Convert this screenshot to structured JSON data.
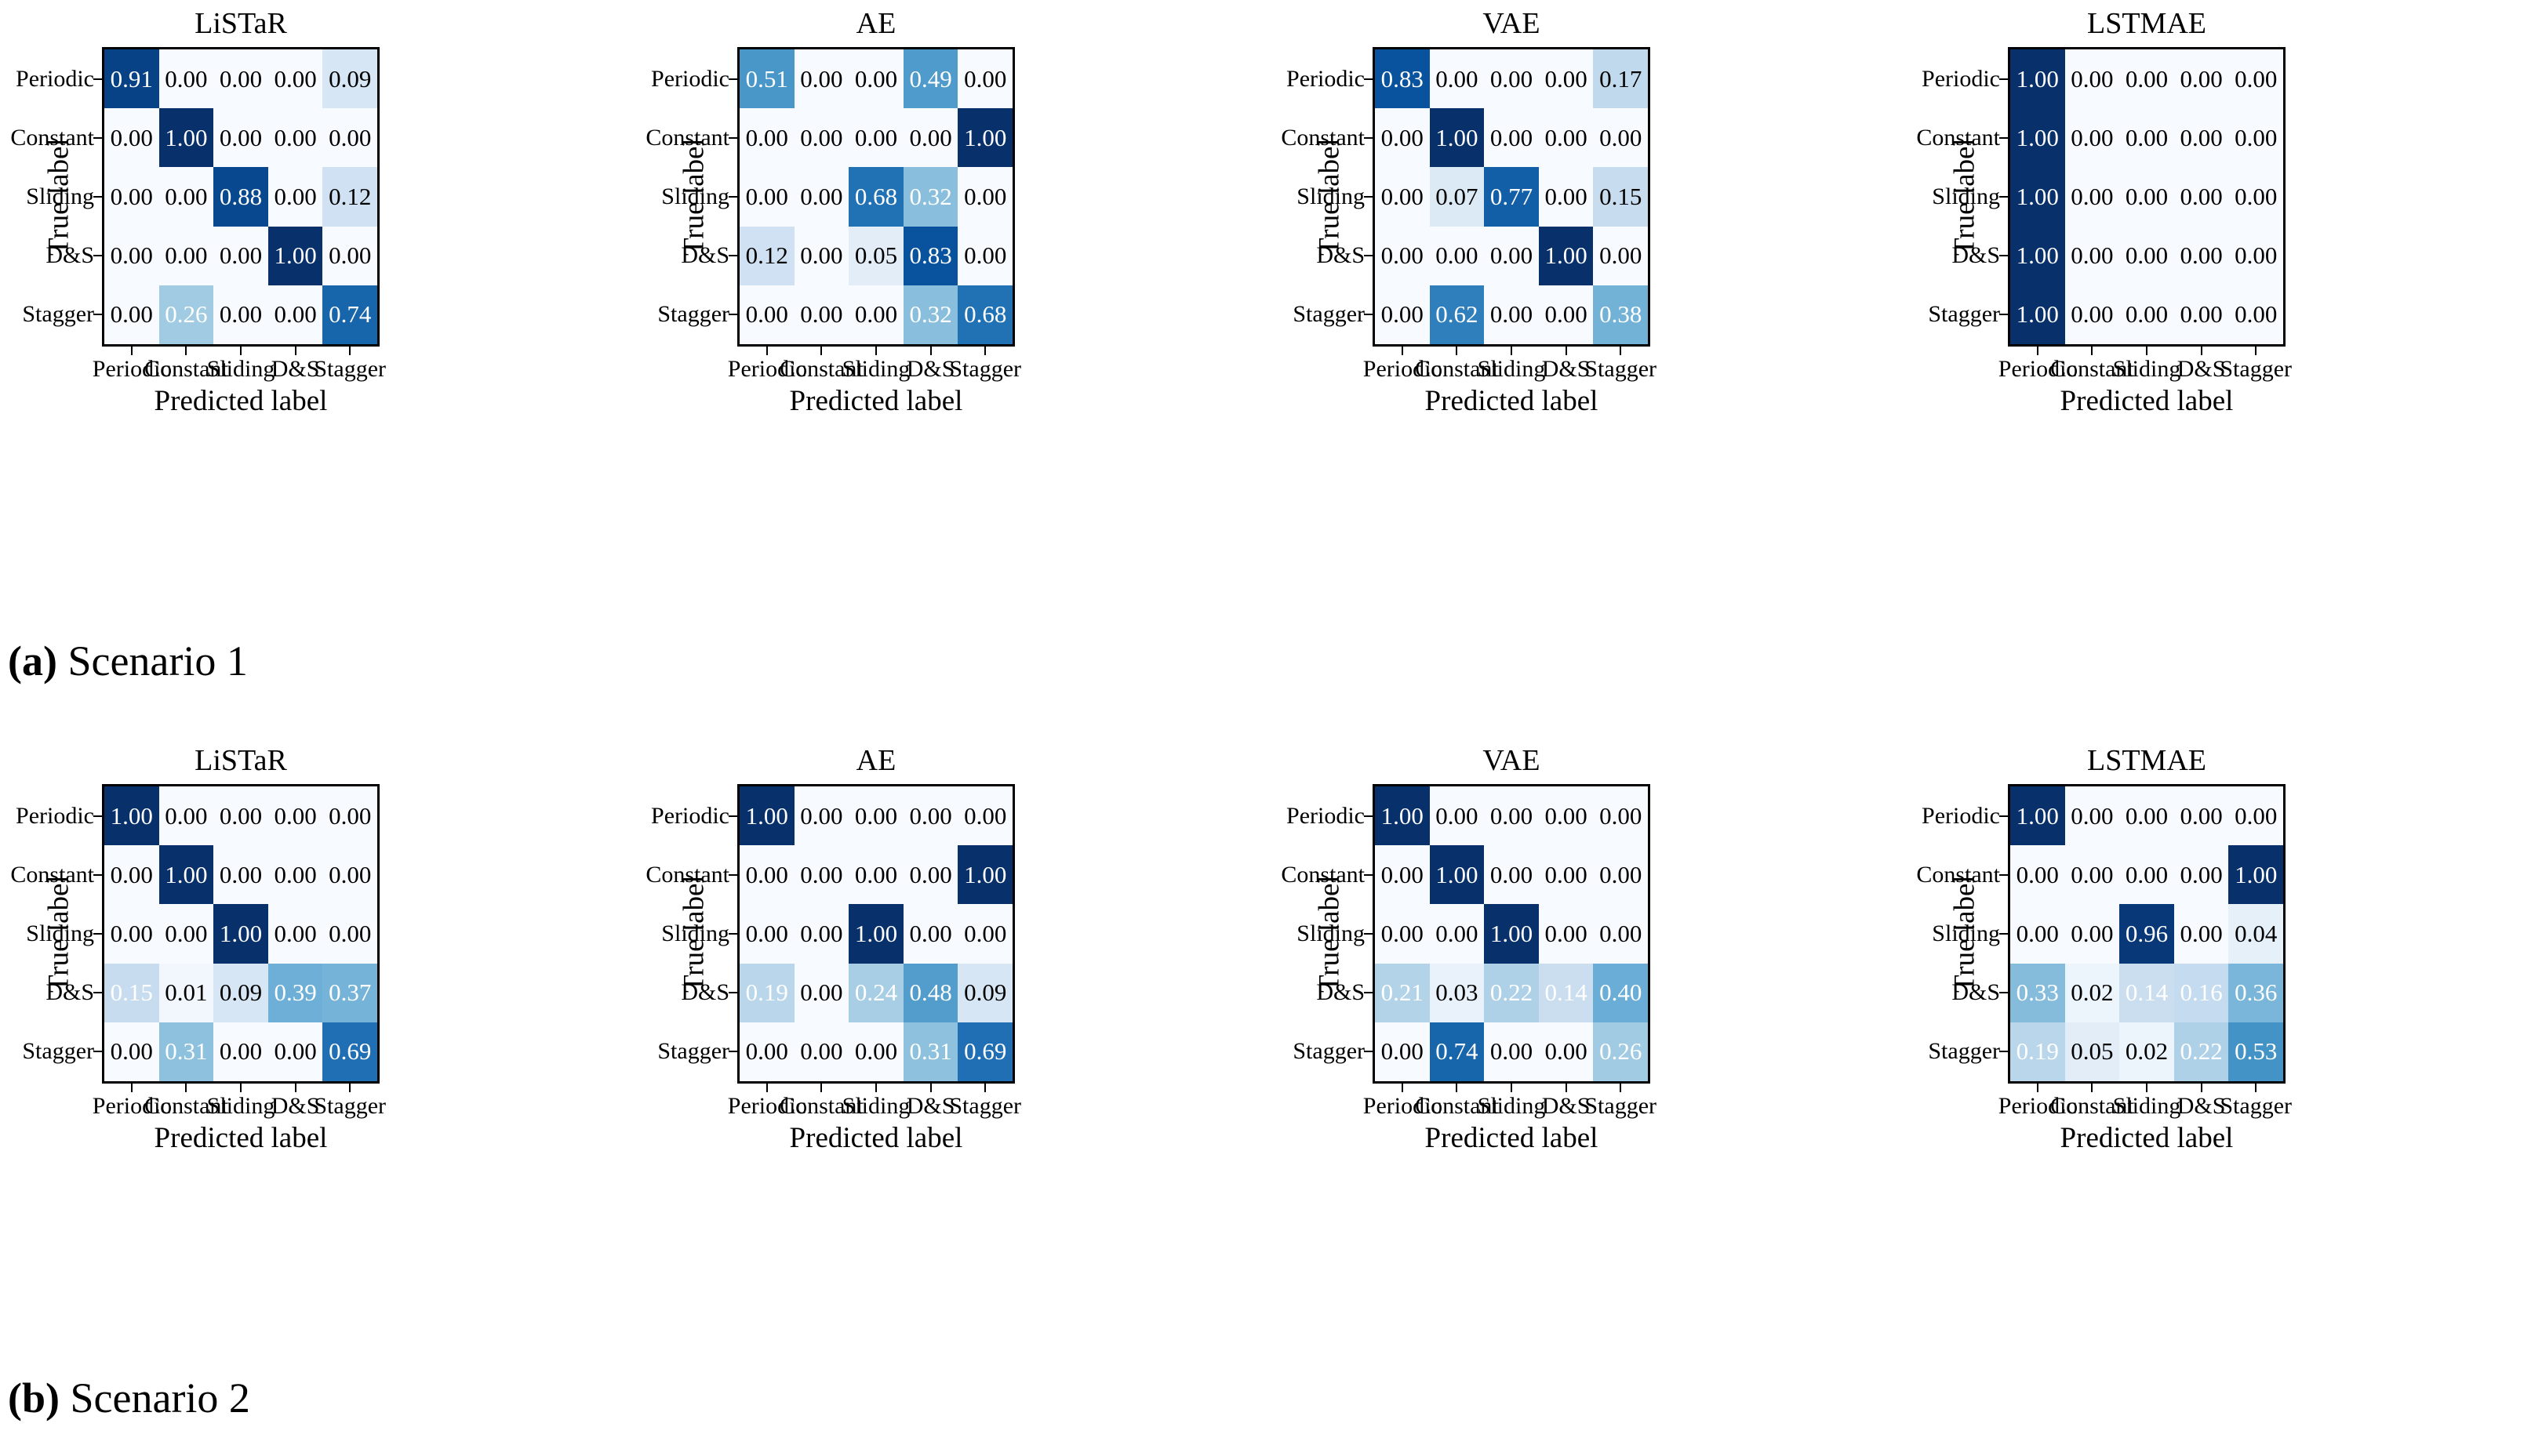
{
  "figure_type": "confusion-matrix-grid",
  "axis": {
    "x_label": "Predicted label",
    "y_label": "True label"
  },
  "classes": [
    "Periodic",
    "Constant",
    "Sliding",
    "D&S",
    "Stagger"
  ],
  "panels": [
    {
      "caption_tag": "(a)",
      "caption_label": "Scenario 1",
      "white_text_min": 0.2
    },
    {
      "caption_tag": "(b)",
      "caption_label": "Scenario 2",
      "white_text_min": 0.13
    }
  ],
  "style": {
    "colormap": "Blues",
    "colormap_anchors": [
      "#f7fbff",
      "#deebf7",
      "#c6dbef",
      "#9ecae1",
      "#6baed6",
      "#4292c6",
      "#2171b5",
      "#08519c",
      "#08306b"
    ],
    "gamma": 0.75,
    "border_color": "#000000",
    "text_dark": "#000000",
    "text_light": "#ffffff"
  },
  "chart_data": [
    {
      "type": "heatmap",
      "panel": "(a) Scenario 1",
      "title": "LiSTaR",
      "xlabel": "Predicted label",
      "ylabel": "True label",
      "x_categories": [
        "Periodic",
        "Constant",
        "Sliding",
        "D&S",
        "Stagger"
      ],
      "y_categories": [
        "Periodic",
        "Constant",
        "Sliding",
        "D&S",
        "Stagger"
      ],
      "value_range": [
        0,
        1
      ],
      "colormap": "Blues",
      "values": [
        [
          0.91,
          0.0,
          0.0,
          0.0,
          0.09
        ],
        [
          0.0,
          1.0,
          0.0,
          0.0,
          0.0
        ],
        [
          0.0,
          0.0,
          0.88,
          0.0,
          0.12
        ],
        [
          0.0,
          0.0,
          0.0,
          1.0,
          0.0
        ],
        [
          0.0,
          0.26,
          0.0,
          0.0,
          0.74
        ]
      ]
    },
    {
      "type": "heatmap",
      "panel": "(a) Scenario 1",
      "title": "AE",
      "xlabel": "Predicted label",
      "ylabel": "True label",
      "x_categories": [
        "Periodic",
        "Constant",
        "Sliding",
        "D&S",
        "Stagger"
      ],
      "y_categories": [
        "Periodic",
        "Constant",
        "Sliding",
        "D&S",
        "Stagger"
      ],
      "value_range": [
        0,
        1
      ],
      "colormap": "Blues",
      "values": [
        [
          0.51,
          0.0,
          0.0,
          0.49,
          0.0
        ],
        [
          0.0,
          0.0,
          0.0,
          0.0,
          1.0
        ],
        [
          0.0,
          0.0,
          0.68,
          0.32,
          0.0
        ],
        [
          0.12,
          0.0,
          0.05,
          0.83,
          0.0
        ],
        [
          0.0,
          0.0,
          0.0,
          0.32,
          0.68
        ]
      ]
    },
    {
      "type": "heatmap",
      "panel": "(a) Scenario 1",
      "title": "VAE",
      "xlabel": "Predicted label",
      "ylabel": "True label",
      "x_categories": [
        "Periodic",
        "Constant",
        "Sliding",
        "D&S",
        "Stagger"
      ],
      "y_categories": [
        "Periodic",
        "Constant",
        "Sliding",
        "D&S",
        "Stagger"
      ],
      "value_range": [
        0,
        1
      ],
      "colormap": "Blues",
      "values": [
        [
          0.83,
          0.0,
          0.0,
          0.0,
          0.17
        ],
        [
          0.0,
          1.0,
          0.0,
          0.0,
          0.0
        ],
        [
          0.0,
          0.07,
          0.77,
          0.0,
          0.15
        ],
        [
          0.0,
          0.0,
          0.0,
          1.0,
          0.0
        ],
        [
          0.0,
          0.62,
          0.0,
          0.0,
          0.38
        ]
      ]
    },
    {
      "type": "heatmap",
      "panel": "(a) Scenario 1",
      "title": "LSTMAE",
      "xlabel": "Predicted label",
      "ylabel": "True label",
      "x_categories": [
        "Periodic",
        "Constant",
        "Sliding",
        "D&S",
        "Stagger"
      ],
      "y_categories": [
        "Periodic",
        "Constant",
        "Sliding",
        "D&S",
        "Stagger"
      ],
      "value_range": [
        0,
        1
      ],
      "colormap": "Blues",
      "values": [
        [
          1.0,
          0.0,
          0.0,
          0.0,
          0.0
        ],
        [
          1.0,
          0.0,
          0.0,
          0.0,
          0.0
        ],
        [
          1.0,
          0.0,
          0.0,
          0.0,
          0.0
        ],
        [
          1.0,
          0.0,
          0.0,
          0.0,
          0.0
        ],
        [
          1.0,
          0.0,
          0.0,
          0.0,
          0.0
        ]
      ]
    },
    {
      "type": "heatmap",
      "panel": "(b) Scenario 2",
      "title": "LiSTaR",
      "xlabel": "Predicted label",
      "ylabel": "True label",
      "x_categories": [
        "Periodic",
        "Constant",
        "Sliding",
        "D&S",
        "Stagger"
      ],
      "y_categories": [
        "Periodic",
        "Constant",
        "Sliding",
        "D&S",
        "Stagger"
      ],
      "value_range": [
        0,
        1
      ],
      "colormap": "Blues",
      "values": [
        [
          1.0,
          0.0,
          0.0,
          0.0,
          0.0
        ],
        [
          0.0,
          1.0,
          0.0,
          0.0,
          0.0
        ],
        [
          0.0,
          0.0,
          1.0,
          0.0,
          0.0
        ],
        [
          0.15,
          0.01,
          0.09,
          0.39,
          0.37
        ],
        [
          0.0,
          0.31,
          0.0,
          0.0,
          0.69
        ]
      ]
    },
    {
      "type": "heatmap",
      "panel": "(b) Scenario 2",
      "title": "AE",
      "xlabel": "Predicted label",
      "ylabel": "True label",
      "x_categories": [
        "Periodic",
        "Constant",
        "Sliding",
        "D&S",
        "Stagger"
      ],
      "y_categories": [
        "Periodic",
        "Constant",
        "Sliding",
        "D&S",
        "Stagger"
      ],
      "value_range": [
        0,
        1
      ],
      "colormap": "Blues",
      "values": [
        [
          1.0,
          0.0,
          0.0,
          0.0,
          0.0
        ],
        [
          0.0,
          0.0,
          0.0,
          0.0,
          1.0
        ],
        [
          0.0,
          0.0,
          1.0,
          0.0,
          0.0
        ],
        [
          0.19,
          0.0,
          0.24,
          0.48,
          0.09
        ],
        [
          0.0,
          0.0,
          0.0,
          0.31,
          0.69
        ]
      ]
    },
    {
      "type": "heatmap",
      "panel": "(b) Scenario 2",
      "title": "VAE",
      "xlabel": "Predicted label",
      "ylabel": "True label",
      "x_categories": [
        "Periodic",
        "Constant",
        "Sliding",
        "D&S",
        "Stagger"
      ],
      "y_categories": [
        "Periodic",
        "Constant",
        "Sliding",
        "D&S",
        "Stagger"
      ],
      "value_range": [
        0,
        1
      ],
      "colormap": "Blues",
      "values": [
        [
          1.0,
          0.0,
          0.0,
          0.0,
          0.0
        ],
        [
          0.0,
          1.0,
          0.0,
          0.0,
          0.0
        ],
        [
          0.0,
          0.0,
          1.0,
          0.0,
          0.0
        ],
        [
          0.21,
          0.03,
          0.22,
          0.14,
          0.4
        ],
        [
          0.0,
          0.74,
          0.0,
          0.0,
          0.26
        ]
      ]
    },
    {
      "type": "heatmap",
      "panel": "(b) Scenario 2",
      "title": "LSTMAE",
      "xlabel": "Predicted label",
      "ylabel": "True label",
      "x_categories": [
        "Periodic",
        "Constant",
        "Sliding",
        "D&S",
        "Stagger"
      ],
      "y_categories": [
        "Periodic",
        "Constant",
        "Sliding",
        "D&S",
        "Stagger"
      ],
      "value_range": [
        0,
        1
      ],
      "colormap": "Blues",
      "values": [
        [
          1.0,
          0.0,
          0.0,
          0.0,
          0.0
        ],
        [
          0.0,
          0.0,
          0.0,
          0.0,
          1.0
        ],
        [
          0.0,
          0.0,
          0.96,
          0.0,
          0.04
        ],
        [
          0.33,
          0.02,
          0.14,
          0.16,
          0.36
        ],
        [
          0.19,
          0.05,
          0.02,
          0.22,
          0.53
        ]
      ]
    }
  ]
}
